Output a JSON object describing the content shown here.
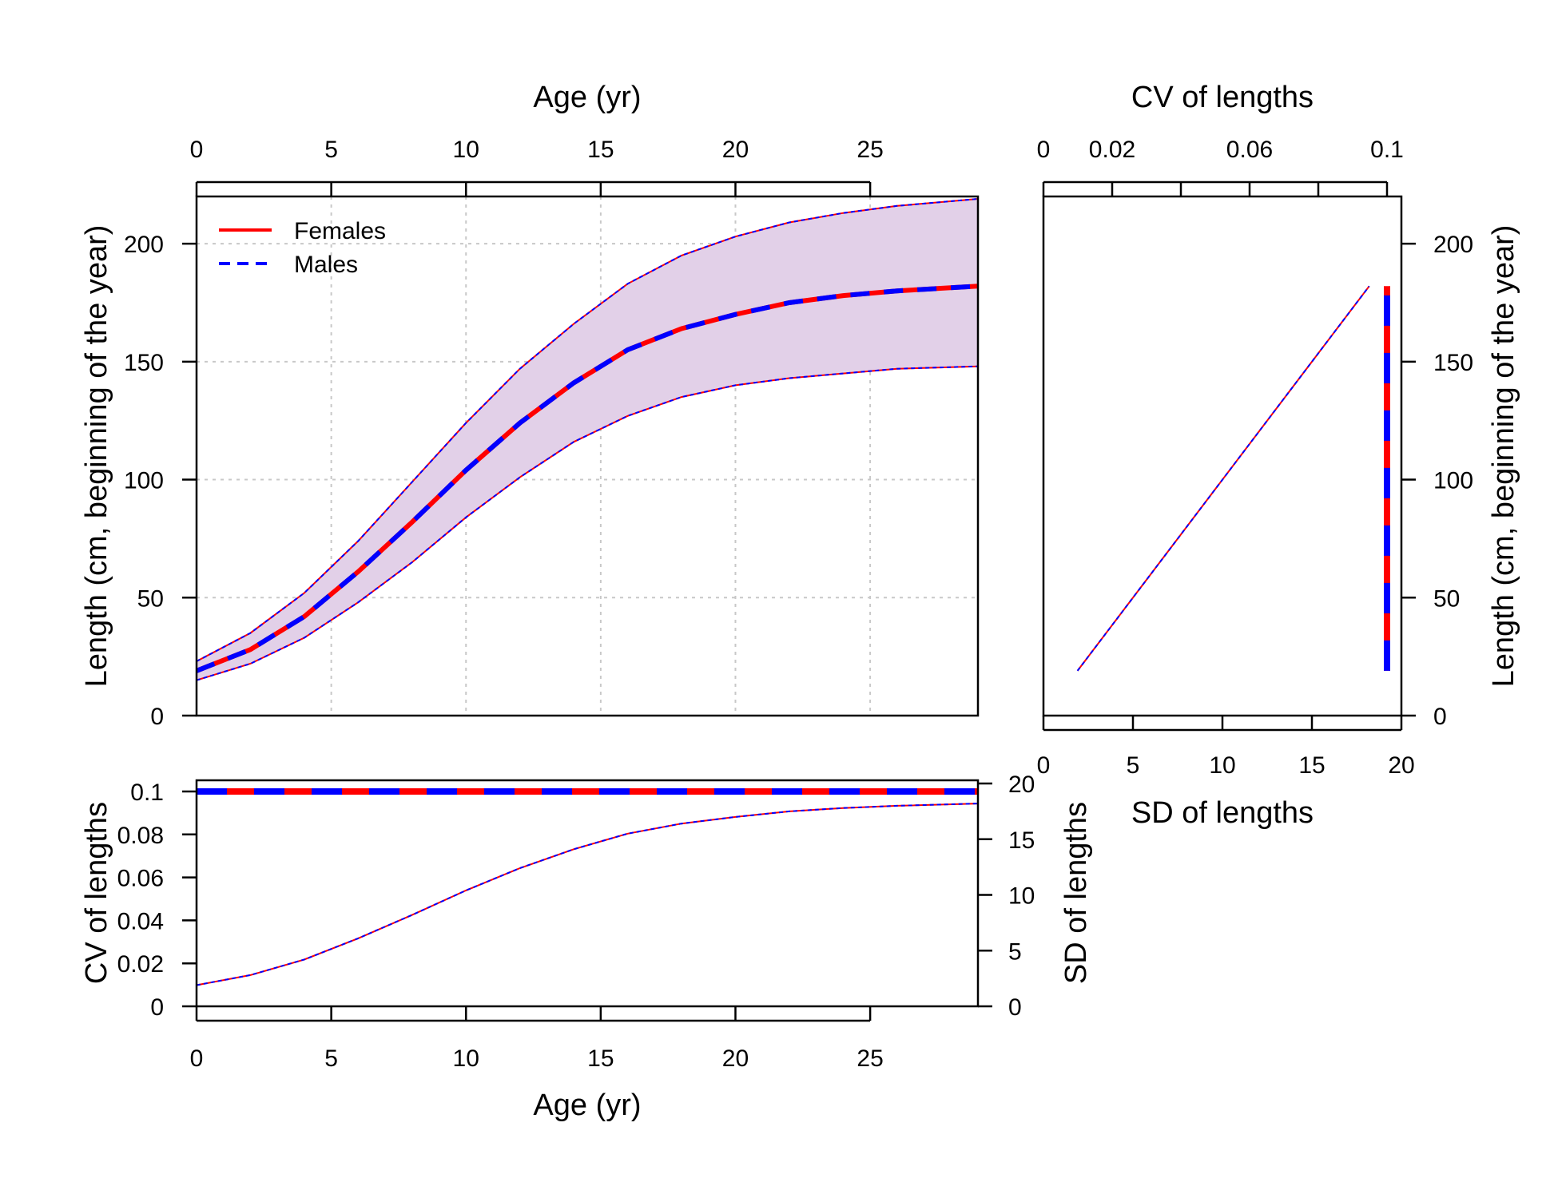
{
  "colors": {
    "females": "#ff0000",
    "males": "#0000ff",
    "band_fill": "#e2d0e8",
    "grid": "#c8c8c8"
  },
  "legend": {
    "position": "top-left",
    "females_label": "Females",
    "males_label": "Males"
  },
  "chart_data": [
    {
      "id": "main",
      "type": "line",
      "description_key": "length-at-age",
      "xlabel": "Age (yr)",
      "ylabel": "Length (cm, beginning of the year)",
      "xlim": [
        0,
        29
      ],
      "ylim": [
        0,
        220
      ],
      "xticks": [
        0,
        5,
        10,
        15,
        20,
        25
      ],
      "yticks": [
        0,
        50,
        100,
        150,
        200
      ],
      "grid": true,
      "x": [
        0,
        2,
        4,
        6,
        8,
        10,
        12,
        14,
        16,
        18,
        20,
        22,
        24,
        26,
        29
      ],
      "series": [
        {
          "name": "Females",
          "style": "solid",
          "values": [
            19,
            28,
            42,
            61,
            82,
            104,
            124,
            141,
            155,
            164,
            170,
            175,
            178,
            180,
            182
          ]
        },
        {
          "name": "Males",
          "style": "dashed",
          "values": [
            19,
            28,
            42,
            61,
            82,
            104,
            124,
            141,
            155,
            164,
            170,
            175,
            178,
            180,
            182
          ]
        }
      ],
      "band_upper": [
        23,
        35,
        52,
        74,
        99,
        124,
        147,
        166,
        183,
        195,
        203,
        209,
        213,
        216,
        219
      ],
      "band_lower": [
        15,
        22,
        33,
        48,
        65,
        84,
        101,
        116,
        127,
        135,
        140,
        143,
        145,
        147,
        148
      ]
    },
    {
      "id": "cv-sd",
      "type": "line",
      "xlabel": "Age (yr)",
      "ylabel": "CV of lengths",
      "ylabel_right": "SD of lengths",
      "xlim": [
        0,
        29
      ],
      "ylim": [
        0,
        0.1
      ],
      "ylim_right": [
        0,
        20
      ],
      "xticks": [
        0,
        5,
        10,
        15,
        20,
        25
      ],
      "yticks": [
        0,
        0.02,
        0.04,
        0.06,
        0.08,
        0.1
      ],
      "ytick_labels": [
        "0",
        "0.02",
        "0.04",
        "0.06",
        "0.08",
        "0.1"
      ],
      "yticks_right": [
        0,
        5,
        10,
        15,
        20
      ],
      "x": [
        0,
        2,
        4,
        6,
        8,
        10,
        12,
        14,
        16,
        18,
        20,
        22,
        24,
        26,
        29
      ],
      "cv": [
        0.1,
        0.1,
        0.1,
        0.1,
        0.1,
        0.1,
        0.1,
        0.1,
        0.1,
        0.1,
        0.1,
        0.1,
        0.1,
        0.1,
        0.1
      ],
      "sd": [
        1.9,
        2.8,
        4.2,
        6.1,
        8.2,
        10.4,
        12.4,
        14.1,
        15.5,
        16.4,
        17.0,
        17.5,
        17.8,
        18.0,
        18.2
      ]
    },
    {
      "id": "length-cv",
      "type": "line",
      "xlabel": "SD of lengths",
      "xlabel_top": "CV of lengths",
      "ylabel": "Length (cm, beginning of the year)",
      "xlim": [
        0,
        20
      ],
      "xlim_top": [
        0,
        0.1
      ],
      "ylim": [
        0,
        220
      ],
      "xticks": [
        0,
        5,
        10,
        15,
        20
      ],
      "xticks_top": [
        0,
        0.02,
        0.04,
        0.06,
        0.08,
        0.1
      ],
      "xticks_top_labels": [
        "0",
        "0.02",
        "",
        "0.06",
        "",
        "0.1"
      ],
      "yticks": [
        0,
        50,
        100,
        150,
        200
      ],
      "sd_line": {
        "sd": [
          1.9,
          18.2
        ],
        "length": [
          19,
          182
        ]
      },
      "cv_line": {
        "cv": [
          0.1,
          0.1
        ],
        "length": [
          19,
          182
        ]
      }
    }
  ]
}
